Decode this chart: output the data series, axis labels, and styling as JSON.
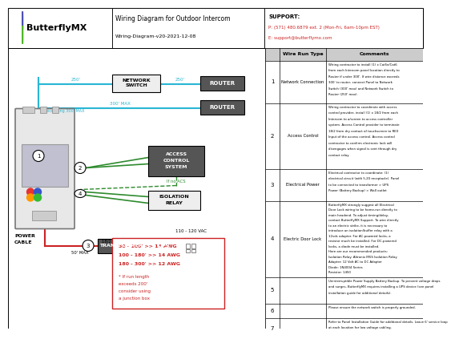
{
  "title": "Wiring Diagram for Outdoor Intercom",
  "subtitle": "Wiring-Diagram-v20-2021-12-08",
  "logo_text": "ButterflyMX",
  "support_label": "SUPPORT:",
  "support_phone": "P: (571) 480.6879 ext. 2 (Mon-Fri, 6am-10pm EST)",
  "support_email": "E: support@butterflymx.com",
  "bg_color": "#ffffff",
  "cyan": "#29b6d4",
  "green": "#2e8b2e",
  "red": "#cc2222",
  "logo_red": "#e63333",
  "logo_blue": "#3355cc",
  "logo_orange": "#ff9900",
  "logo_green": "#33bb33",
  "wire_run_rows": [
    {
      "num": "1",
      "type": "Network Connection",
      "comment": "Wiring contractor to install (1) x Cat5e/Cat6\nfrom each Intercom panel location directly to\nRouter if under 300'. If wire distance exceeds\n300' to router, connect Panel to Network\nSwitch (300' max) and Network Switch to\nRouter (250' max)."
    },
    {
      "num": "2",
      "type": "Access Control",
      "comment": "Wiring contractor to coordinate with access\ncontrol provider, install (1) x 18/2 from each\nIntercom to a/screen to access controller\nsystem. Access Control provider to terminate\n18/2 from dry contact of touchscreen to REX\nInput of the access control. Access control\ncontractor to confirm electronic lock will\ndisengages when signal is sent through dry\ncontact relay."
    },
    {
      "num": "3",
      "type": "Electrical Power",
      "comment": "Electrical contractor to coordinate: (1)\nelectrical circuit (with 5-20 receptacle). Panel\nto be connected to transformer > UPS\nPower (Battery Backup) > Wall outlet"
    },
    {
      "num": "4",
      "type": "Electric Door Lock",
      "comment": "ButterflyMX strongly suggest all Electrical\nDoor Lock wiring to be home-run directly to\nmain headend. To adjust timing/delay,\ncontact ButterflyMX Support. To wire directly\nto an electric strike, it is necessary to\nintroduce an isolation/buffer relay with a\n12vdc adapter. For AC-powered locks, a\nresistor much be installed. For DC-powered\nlocks, a diode must be installed.\nHere are our recommended products:\nIsolation Relay: Altronix IR5S Isolation Relay\nAdapter: 12 Volt AC to DC Adapter\nDiode: 1N4004 Series\nResistor: 1450"
    },
    {
      "num": "5",
      "type": "",
      "comment": "Uninterruptible Power Supply Battery Backup. To prevent voltage drops\nand surges, ButterflyMX requires installing a UPS device (see panel\ninstallation guide for additional details)."
    },
    {
      "num": "6",
      "type": "",
      "comment": "Please ensure the network switch is properly grounded."
    },
    {
      "num": "7",
      "type": "",
      "comment": "Refer to Panel Installation Guide for additional details. Leave 6' service loop\nat each location for low voltage cabling."
    }
  ]
}
